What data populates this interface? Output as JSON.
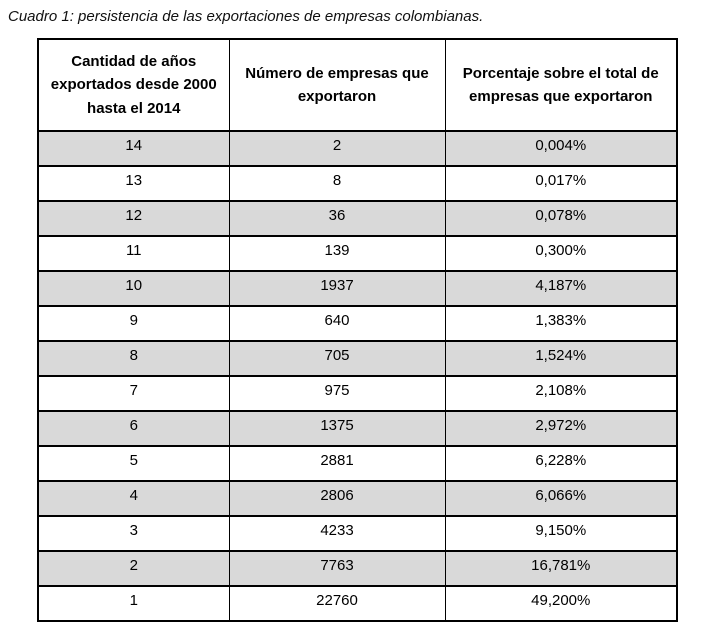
{
  "title": "Cuadro 1: persistencia de las exportaciones de empresas colombianas.",
  "colors": {
    "row_shade": "#d9d9d9",
    "border": "#000000",
    "background": "#ffffff",
    "text": "#000000"
  },
  "table": {
    "headers": [
      "Cantidad de años exportados desde 2000 hasta el 2014",
      "Número de empresas que exportaron",
      "Porcentaje sobre el total de empresas que exportaron"
    ],
    "rows": [
      {
        "years": "14",
        "count": "2",
        "pct": "0,004%"
      },
      {
        "years": "13",
        "count": "8",
        "pct": "0,017%"
      },
      {
        "years": "12",
        "count": "36",
        "pct": "0,078%"
      },
      {
        "years": "11",
        "count": "139",
        "pct": "0,300%"
      },
      {
        "years": "10",
        "count": "1937",
        "pct": "4,187%"
      },
      {
        "years": "9",
        "count": "640",
        "pct": "1,383%"
      },
      {
        "years": "8",
        "count": "705",
        "pct": "1,524%"
      },
      {
        "years": "7",
        "count": "975",
        "pct": "2,108%"
      },
      {
        "years": "6",
        "count": "1375",
        "pct": "2,972%"
      },
      {
        "years": "5",
        "count": "2881",
        "pct": "6,228%"
      },
      {
        "years": "4",
        "count": "2806",
        "pct": "6,066%"
      },
      {
        "years": "3",
        "count": "4233",
        "pct": "9,150%"
      },
      {
        "years": "2",
        "count": "7763",
        "pct": "16,781%"
      },
      {
        "years": "1",
        "count": "22760",
        "pct": "49,200%"
      }
    ]
  }
}
